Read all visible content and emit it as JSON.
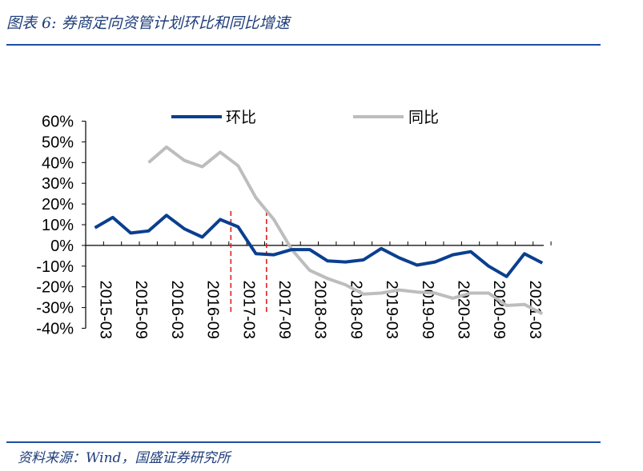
{
  "title": "图表 6:  券商定向资管计划环比和同比增速",
  "source": "资料来源：Wind，国盛证券研究所",
  "colors": {
    "accent": "#1f4ea1",
    "hb": "#0a3f8f",
    "tb": "#bdbdbd",
    "marker": "#e02020"
  },
  "chart_data": {
    "type": "line",
    "x": [
      "2015-03",
      "2015-06",
      "2015-09",
      "2015-12",
      "2016-03",
      "2016-06",
      "2016-09",
      "2016-12",
      "2017-03",
      "2017-06",
      "2017-09",
      "2017-12",
      "2018-03",
      "2018-06",
      "2018-09",
      "2018-12",
      "2019-03",
      "2019-06",
      "2019-09",
      "2019-12",
      "2020-03",
      "2020-06",
      "2020-09",
      "2020-12",
      "2021-03",
      "2021-06"
    ],
    "tick_labels": [
      "2015-03",
      "2015-09",
      "2016-03",
      "2016-09",
      "2017-03",
      "2017-09",
      "2018-03",
      "2018-09",
      "2019-03",
      "2019-09",
      "2020-03",
      "2020-09",
      "2021-03"
    ],
    "series": [
      {
        "name": "环比",
        "color": "#0a3f8f",
        "values": [
          8.5,
          13.5,
          6,
          7,
          14.5,
          8,
          4,
          12.5,
          9,
          -4,
          -4.5,
          -2,
          -2,
          -7.5,
          -8,
          -7,
          -1.5,
          -6,
          -9.5,
          -8,
          -4.5,
          -3,
          -10,
          -15,
          -4,
          -8.5
        ]
      },
      {
        "name": "同比",
        "color": "#bdbdbd",
        "values": [
          null,
          null,
          null,
          40,
          47.5,
          41,
          38,
          45,
          38.5,
          23,
          12.5,
          -2,
          -12,
          -16,
          -19,
          -23.5,
          -23,
          -21.5,
          -22.5,
          -23,
          -25.5,
          -23,
          -23,
          -29,
          -28.5,
          -33
        ]
      }
    ],
    "ylim": [
      -40,
      60
    ],
    "yticks": [
      60,
      50,
      40,
      30,
      20,
      10,
      0,
      -10,
      -20,
      -30,
      -40
    ],
    "ytick_labels": [
      "60%",
      "50%",
      "40%",
      "30%",
      "20%",
      "10%",
      "0%",
      "-10%",
      "-20%",
      "-30%",
      "-40%"
    ],
    "markers": [
      "2017-03",
      "2017-09"
    ],
    "legend": "top",
    "grid": false
  }
}
